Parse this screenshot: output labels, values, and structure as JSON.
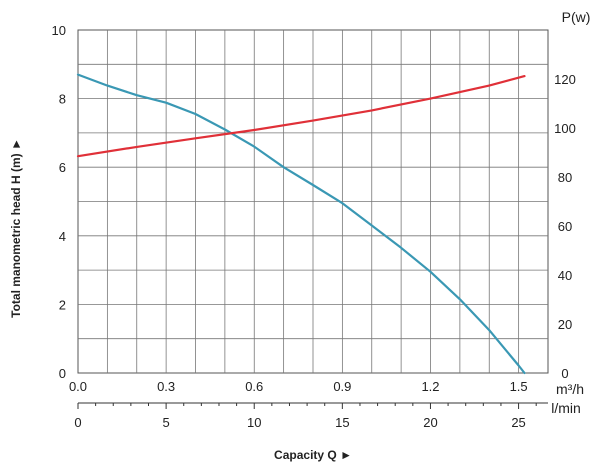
{
  "chart_data": {
    "type": "line",
    "title": "",
    "grid": true,
    "x_axis": {
      "range": [
        0.0,
        1.6
      ],
      "tick_labels": [
        "0.0",
        "0.3",
        "0.6",
        "0.9",
        "1.2",
        "1.5"
      ],
      "unit": "m³/h"
    },
    "x2_axis": {
      "range": [
        0,
        26.67
      ],
      "tick_labels": [
        "0",
        "5",
        "10",
        "15",
        "20",
        "25"
      ],
      "unit": "l/min"
    },
    "xlabel": "Capacity Q ►",
    "y_left": {
      "label": "Total manometric head H (m) ►",
      "range": [
        0,
        10
      ],
      "tick_labels": [
        "0",
        "2",
        "4",
        "6",
        "8",
        "10"
      ]
    },
    "y_right": {
      "label": "P(w)",
      "range": [
        0,
        140
      ],
      "tick_labels": [
        "0",
        "20",
        "40",
        "60",
        "80",
        "100",
        "120"
      ]
    },
    "series": [
      {
        "color": "#3a98b4",
        "axis": "left",
        "x": [
          0.0,
          0.1,
          0.2,
          0.3,
          0.4,
          0.5,
          0.6,
          0.7,
          0.8,
          0.9,
          1.0,
          1.1,
          1.2,
          1.3,
          1.4,
          1.5,
          1.52
        ],
        "y": [
          8.7,
          8.38,
          8.1,
          7.88,
          7.55,
          7.1,
          6.6,
          6.0,
          5.48,
          4.95,
          4.3,
          3.65,
          2.95,
          2.15,
          1.25,
          0.22,
          0.0
        ]
      },
      {
        "color": "#e03038",
        "axis": "right",
        "x": [
          0.0,
          0.2,
          0.4,
          0.6,
          0.8,
          1.0,
          1.2,
          1.4,
          1.52
        ],
        "y": [
          88.5,
          92.3,
          95.8,
          99.2,
          103.0,
          107.2,
          112.0,
          117.3,
          121.2
        ]
      }
    ]
  }
}
